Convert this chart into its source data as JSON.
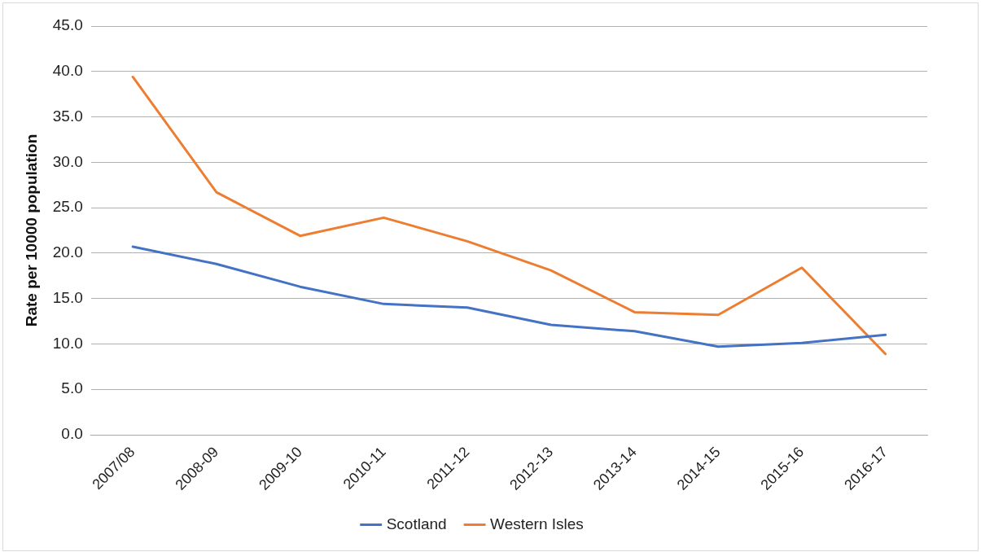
{
  "chart_data": {
    "type": "line",
    "ylabel": "Rate per 10000 population",
    "categories": [
      "2007/08",
      "2008-09",
      "2009-10",
      "2010-11",
      "2011-12",
      "2012-13",
      "2013-14",
      "2014-15",
      "2015-16",
      "2016-17"
    ],
    "series": [
      {
        "name": "Scotland",
        "color": "#4472c4",
        "values": [
          20.7,
          18.8,
          16.3,
          14.4,
          14.0,
          12.1,
          11.4,
          9.7,
          10.1,
          11.0
        ]
      },
      {
        "name": "Western Isles",
        "color": "#ed7d31",
        "values": [
          39.4,
          26.7,
          21.9,
          23.9,
          21.3,
          18.1,
          13.5,
          13.2,
          18.4,
          8.9
        ]
      }
    ],
    "ylim": [
      0,
      45
    ],
    "yticks": [
      {
        "value": 0,
        "label": "0.0"
      },
      {
        "value": 5,
        "label": "5.0"
      },
      {
        "value": 10,
        "label": "10.0"
      },
      {
        "value": 15,
        "label": "15.0"
      },
      {
        "value": 20,
        "label": "20.0"
      },
      {
        "value": 25,
        "label": "25.0"
      },
      {
        "value": 30,
        "label": "30.0"
      },
      {
        "value": 35,
        "label": "35.0"
      },
      {
        "value": 40,
        "label": "40.0"
      },
      {
        "value": 45,
        "label": "45.0"
      }
    ],
    "grid": "y",
    "legend": "bottom",
    "marker": "none",
    "line_style": "solid"
  }
}
